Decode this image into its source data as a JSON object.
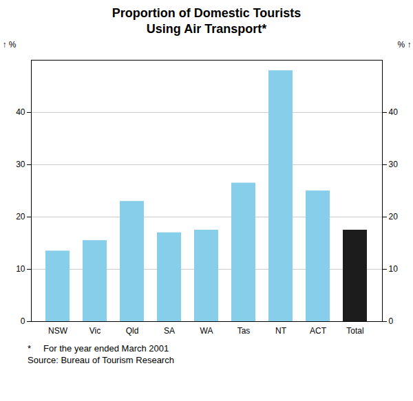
{
  "chart_data": {
    "type": "bar",
    "title": "Proportion of Domestic Tourists\nUsing Air Transport*",
    "categories": [
      "NSW",
      "Vic",
      "Qld",
      "SA",
      "WA",
      "Tas",
      "NT",
      "ACT",
      "Total"
    ],
    "values": [
      13.5,
      15.5,
      23.0,
      17.0,
      17.5,
      26.5,
      48.0,
      25.0,
      17.5
    ],
    "colors": [
      "#87CEEB",
      "#87CEEB",
      "#87CEEB",
      "#87CEEB",
      "#87CEEB",
      "#87CEEB",
      "#87CEEB",
      "#87CEEB",
      "#1c1c1c"
    ],
    "y_label": "%",
    "ylim": [
      0,
      50
    ],
    "yticks": [
      0,
      10,
      20,
      30,
      40
    ],
    "grid": true,
    "annotations": [
      "*     For the year ended March 2001",
      "Source: Bureau of Tourism Research"
    ]
  }
}
